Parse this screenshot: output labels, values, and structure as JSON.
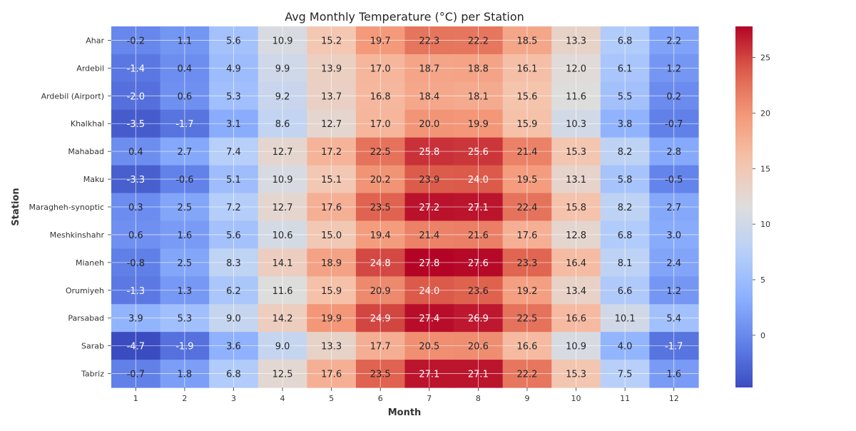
{
  "chart_data": {
    "type": "heatmap",
    "title": "Avg Monthly Temperature (°C) per Station",
    "xlabel": "Month",
    "ylabel": "Station",
    "x_labels": [
      "1",
      "2",
      "3",
      "4",
      "5",
      "6",
      "7",
      "8",
      "9",
      "10",
      "11",
      "12"
    ],
    "y_labels": [
      "Ahar",
      "Ardebil",
      "Ardebil (Airport)",
      "Khalkhal",
      "Mahabad",
      "Maku",
      "Maragheh-synoptic",
      "Meshkinshahr",
      "Mianeh",
      "Orumiyeh",
      "Parsabad",
      "Sarab",
      "Tabriz"
    ],
    "values": [
      [
        -0.2,
        1.1,
        5.6,
        10.9,
        15.2,
        19.7,
        22.3,
        22.2,
        18.5,
        13.3,
        6.8,
        2.2
      ],
      [
        -1.4,
        0.4,
        4.9,
        9.9,
        13.9,
        17.0,
        18.7,
        18.8,
        16.1,
        12.0,
        6.1,
        1.2
      ],
      [
        -2.0,
        0.6,
        5.3,
        9.2,
        13.7,
        16.8,
        18.4,
        18.1,
        15.6,
        11.6,
        5.5,
        0.2
      ],
      [
        -3.5,
        -1.7,
        3.1,
        8.6,
        12.7,
        17.0,
        20.0,
        19.9,
        15.9,
        10.3,
        3.8,
        -0.7
      ],
      [
        0.4,
        2.7,
        7.4,
        12.7,
        17.2,
        22.5,
        25.8,
        25.6,
        21.4,
        15.3,
        8.2,
        2.8
      ],
      [
        -3.3,
        -0.6,
        5.1,
        10.9,
        15.1,
        20.2,
        23.9,
        24.0,
        19.5,
        13.1,
        5.8,
        -0.5
      ],
      [
        0.3,
        2.5,
        7.2,
        12.7,
        17.6,
        23.5,
        27.2,
        27.1,
        22.4,
        15.8,
        8.2,
        2.7
      ],
      [
        0.6,
        1.6,
        5.6,
        10.6,
        15.0,
        19.4,
        21.4,
        21.6,
        17.6,
        12.8,
        6.8,
        3.0
      ],
      [
        -0.8,
        2.5,
        8.3,
        14.1,
        18.9,
        24.8,
        27.8,
        27.6,
        23.3,
        16.4,
        8.1,
        2.4
      ],
      [
        -1.3,
        1.3,
        6.2,
        11.6,
        15.9,
        20.9,
        24.0,
        23.6,
        19.2,
        13.4,
        6.6,
        1.2
      ],
      [
        3.9,
        5.3,
        9.0,
        14.2,
        19.9,
        24.9,
        27.4,
        26.9,
        22.5,
        16.6,
        10.1,
        5.4
      ],
      [
        -4.7,
        -1.9,
        3.6,
        9.0,
        13.3,
        17.7,
        20.5,
        20.6,
        16.6,
        10.9,
        4.0,
        -1.7
      ],
      [
        -0.7,
        1.8,
        6.8,
        12.5,
        17.6,
        23.5,
        27.1,
        27.1,
        22.2,
        15.3,
        7.5,
        1.6
      ]
    ],
    "colormap": "coolwarm",
    "color_range": [
      -4.7,
      27.8
    ],
    "colorbar_ticks": [
      0,
      5,
      10,
      15,
      20,
      25
    ],
    "grid": true,
    "annotations": true
  }
}
